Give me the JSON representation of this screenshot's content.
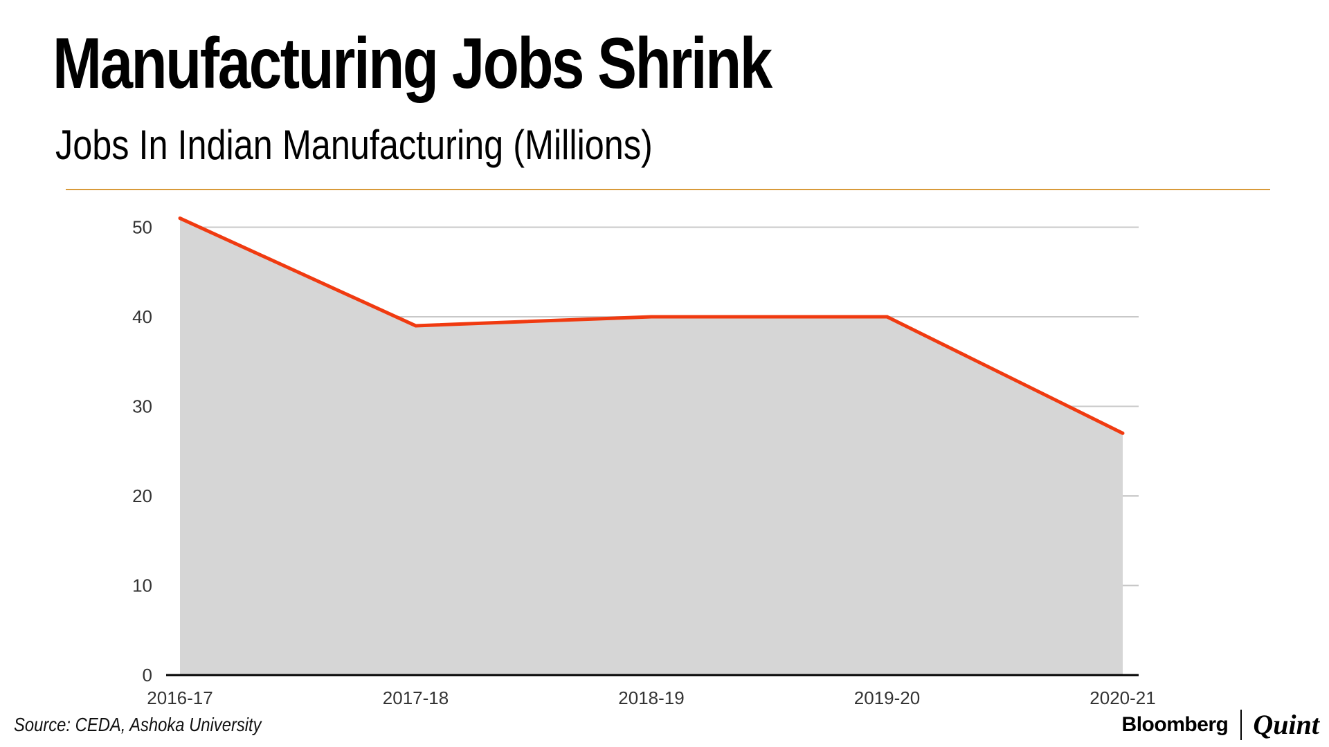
{
  "header": {
    "title": "Manufacturing Jobs Shrink",
    "subtitle": "Jobs In Indian Manufacturing (Millions)"
  },
  "footer": {
    "source": "Source: CEDA, Ashoka University",
    "brand_primary": "Bloomberg",
    "brand_secondary": "Quint"
  },
  "colors": {
    "line": "#f03a10",
    "area": "#d6d6d6",
    "grid": "#c8c8c8",
    "axis": "#000000",
    "rule": "#d89a3a"
  },
  "chart_data": {
    "type": "area",
    "title": "Manufacturing Jobs Shrink",
    "subtitle": "Jobs In Indian Manufacturing (Millions)",
    "xlabel": "",
    "ylabel": "",
    "categories": [
      "2016-17",
      "2017-18",
      "2018-19",
      "2019-20",
      "2020-21"
    ],
    "series": [
      {
        "name": "Jobs In Indian Manufacturing (Millions)",
        "values": [
          51,
          39,
          40,
          40,
          27
        ]
      }
    ],
    "ylim": [
      0,
      50
    ],
    "yticks": [
      0,
      10,
      20,
      30,
      40,
      50
    ],
    "grid": true,
    "legend": "none"
  }
}
